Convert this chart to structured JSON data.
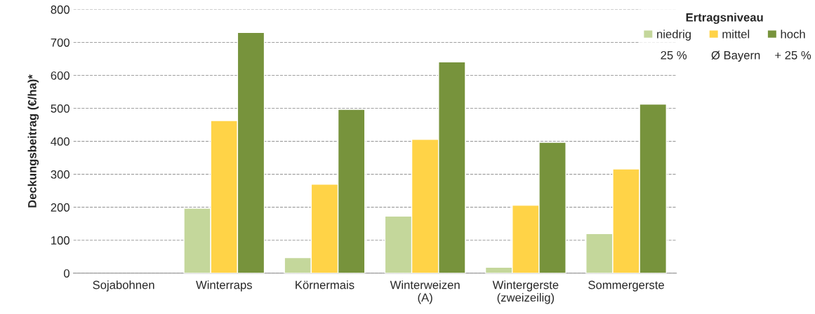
{
  "chart_data": {
    "type": "bar",
    "ylabel": "Deckungsbeitrag (€/ha)*",
    "legend_title": "Ertragsniveau",
    "categories": [
      "Sojabohnen",
      "Winterraps",
      "Körnermais",
      "Winterweizen\n(A)",
      "Wintergerste\n(zweizeilig)",
      "Sommergerste"
    ],
    "series": [
      {
        "name": "niedrig",
        "color": "#c4d79b",
        "values": [
          null,
          197,
          47,
          173,
          18,
          120
        ]
      },
      {
        "name": "mittel",
        "color": "#ffd347",
        "values": [
          null,
          463,
          270,
          406,
          206,
          316
        ]
      },
      {
        "name": "hoch",
        "color": "#77933c",
        "values": [
          null,
          730,
          497,
          641,
          397,
          513
        ]
      }
    ],
    "annotations": [
      "25 %",
      "Ø Bayern",
      "+ 25 %"
    ],
    "ylim": [
      0,
      800
    ],
    "yticks": [
      0,
      100,
      200,
      300,
      400,
      500,
      600,
      700,
      800
    ],
    "grid": "y",
    "legend": "top right"
  }
}
